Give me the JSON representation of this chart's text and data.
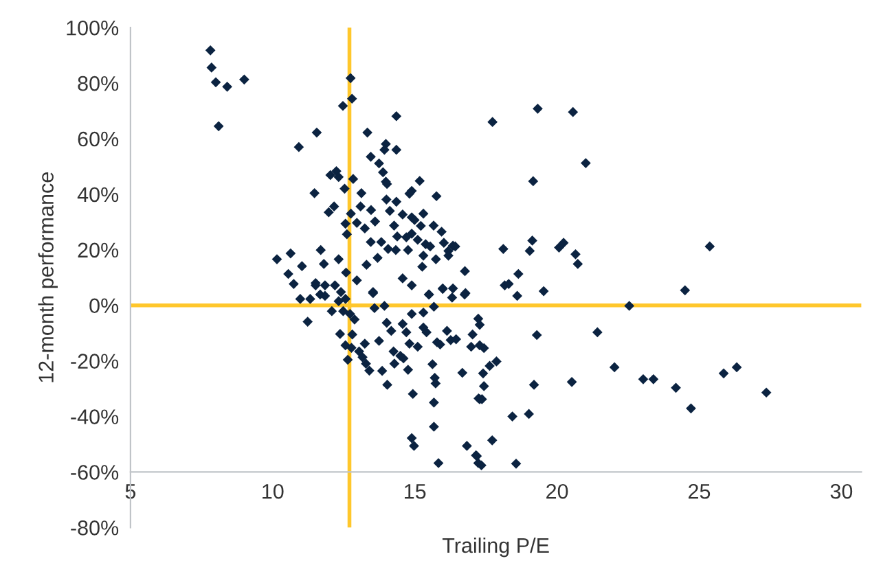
{
  "chart_data": {
    "type": "scatter",
    "xlabel": "Trailing P/E",
    "ylabel": "12-month performance",
    "marker": "diamond",
    "grid": false,
    "legend": false,
    "xlim": [
      5,
      30.7
    ],
    "xticks": [
      5,
      10,
      15,
      20,
      25,
      30
    ],
    "ylim": [
      -80,
      100
    ],
    "yticks": [
      {
        "value": -80,
        "label": "-80%"
      },
      {
        "value": -60,
        "label": "-60%"
      },
      {
        "value": -40,
        "label": "-40%"
      },
      {
        "value": -20,
        "label": "-20%"
      },
      {
        "value": 0,
        "label": "0%"
      },
      {
        "value": 20,
        "label": "20%"
      },
      {
        "value": 40,
        "label": "40%"
      },
      {
        "value": 60,
        "label": "60%"
      },
      {
        "value": 80,
        "label": "80%"
      },
      {
        "value": 100,
        "label": "100%"
      }
    ],
    "ref_lines": [
      {
        "axis": "x",
        "value": 12.7,
        "label": null,
        "color": "#ffc72c"
      },
      {
        "axis": "y",
        "value": 0,
        "label": null,
        "color": "#ffc72c"
      }
    ],
    "series": [
      {
        "color": "#0b2341",
        "x": [
          7.81,
          7.85,
          8.0,
          8.4,
          9.0,
          8.1,
          12.74,
          12.79,
          12.47,
          11.55,
          10.92,
          13.33,
          14.35,
          13.98,
          13.93,
          14.35,
          13.45,
          13.74,
          13.88,
          13.98,
          14.02,
          15.17,
          14.89,
          14.81,
          15.76,
          14.0,
          14.35,
          14.12,
          14.57,
          14.89,
          15.3,
          14.99,
          15.21,
          15.66,
          15.94,
          14.27,
          14.38,
          14.7,
          14.89,
          15.1,
          15.38,
          15.54,
          16.02,
          16.18,
          16.34,
          15.74,
          16.18,
          15.3,
          14.76,
          14.33,
          14.06,
          13.82,
          13.69,
          13.45,
          13.6,
          13.46,
          13.09,
          13.12,
          12.83,
          12.53,
          12.03,
          12.24,
          12.32,
          11.47,
          12.16,
          11.97,
          12.75,
          12.56,
          12.61,
          12.96,
          13.24,
          11.69,
          11.8,
          12.32,
          10.63,
          10.15,
          10.55,
          11.03,
          10.74,
          12.58,
          12.96,
          13.3,
          13.53,
          14.57,
          14.89,
          15.26,
          15.5,
          15.98,
          16.34,
          16.31,
          16.76,
          16.78,
          10.97,
          11.32,
          11.51,
          11.84,
          12.19,
          11.67,
          12.4,
          12.56,
          11.23,
          11.51,
          11.84,
          12.08,
          12.32,
          12.48,
          12.72,
          12.88,
          12.37,
          12.56,
          12.64,
          12.77,
          13.04,
          13.16,
          13.24,
          12.8,
          13.28,
          13.4,
          13.53,
          13.58,
          13.93,
          13.74,
          13.85,
          14.03,
          14.01,
          14.17,
          14.25,
          14.28,
          14.49,
          14.57,
          14.7,
          14.6,
          14.76,
          14.81,
          14.89,
          14.93,
          14.89,
          14.97,
          15.1,
          15.3,
          15.3,
          15.41,
          15.49,
          15.67,
          15.62,
          15.7,
          15.73,
          15.67,
          15.67,
          15.83,
          15.78,
          15.89,
          16.13,
          16.26,
          16.45,
          15.98,
          16.75,
          16.67,
          16.83,
          17.15,
          17.23,
          17.24,
          17.03,
          16.98,
          17.23,
          17.28,
          17.28,
          17.43,
          17.4,
          17.43,
          17.28,
          17.36,
          17.63,
          17.87,
          17.18,
          17.34,
          17.72,
          18.56,
          18.43,
          19.01,
          19.19,
          19.29,
          18.6,
          19.53,
          18.16,
          18.3,
          20.52,
          21.42,
          22.02,
          22.54,
          23.03,
          23.39,
          24.18,
          24.71,
          24.5,
          25.86,
          26.32,
          27.36,
          17.73,
          19.32,
          20.56,
          21.01,
          19.16,
          16.42,
          18.11,
          19.13,
          19.04,
          20.07,
          20.23,
          20.65,
          20.73,
          18.64,
          25.37
        ],
        "values": [
          91.8,
          85.6,
          80.3,
          78.7,
          81.3,
          64.5,
          81.8,
          74.4,
          71.8,
          62.2,
          57.0,
          62.2,
          68.1,
          58.1,
          56.0,
          56.0,
          53.5,
          51.1,
          47.9,
          44.5,
          43.7,
          44.8,
          41.2,
          40.2,
          39.3,
          38.1,
          37.3,
          34.0,
          32.7,
          31.7,
          33.0,
          30.7,
          28.6,
          28.7,
          26.5,
          28.7,
          24.8,
          24.5,
          25.8,
          23.6,
          22.0,
          21.2,
          22.5,
          19.6,
          21.5,
          16.6,
          17.9,
          17.9,
          19.9,
          19.9,
          20.3,
          22.8,
          17.1,
          22.8,
          30.2,
          34.3,
          35.6,
          40.4,
          45.5,
          42.0,
          46.9,
          48.3,
          46.2,
          40.4,
          35.6,
          33.5,
          33.0,
          29.4,
          25.6,
          29.7,
          27.7,
          19.9,
          14.9,
          16.6,
          18.7,
          16.6,
          11.3,
          14.1,
          7.7,
          11.8,
          9.0,
          14.6,
          4.8,
          9.7,
          7.2,
          13.9,
          3.9,
          6.1,
          6.1,
          2.8,
          12.3,
          4.4,
          2.3,
          2.3,
          7.2,
          7.2,
          7.2,
          3.9,
          4.8,
          2.3,
          -5.9,
          8.0,
          3.4,
          -2.1,
          1.5,
          -2.1,
          -3.1,
          -5.1,
          -10.3,
          -14.4,
          -19.6,
          -15.3,
          -16.6,
          -18.7,
          -13.8,
          -10.5,
          -21.0,
          -23.5,
          4.4,
          -1.0,
          -0.2,
          -12.8,
          -23.6,
          -28.6,
          -6.3,
          -9.2,
          -16.6,
          -21.0,
          -18.2,
          -6.7,
          -9.7,
          -19.1,
          -23.2,
          -13.8,
          -3.1,
          -31.9,
          -47.8,
          -50.6,
          -14.9,
          -2.6,
          -8.0,
          -9.7,
          3.9,
          -0.5,
          -21.2,
          -26.1,
          -28.1,
          -35.0,
          -43.7,
          -56.8,
          -13.3,
          -14.1,
          -9.2,
          -12.5,
          -12.2,
          5.9,
          3.9,
          -24.3,
          -50.6,
          -54.0,
          -56.8,
          -33.5,
          -10.5,
          -14.9,
          -4.8,
          -7.0,
          -14.4,
          -15.4,
          -24.5,
          -29.1,
          -33.8,
          -33.8,
          -21.8,
          -20.2,
          -54.3,
          -57.6,
          -48.6,
          -57.0,
          -40.0,
          -39.1,
          -28.6,
          -10.7,
          3.4,
          5.1,
          7.2,
          7.7,
          -27.6,
          -9.7,
          -22.3,
          -0.2,
          -26.6,
          -26.6,
          -29.7,
          -37.1,
          5.4,
          -24.5,
          -22.3,
          -31.4,
          66.0,
          70.8,
          69.6,
          51.2,
          44.7,
          21.2,
          20.3,
          23.3,
          19.6,
          20.8,
          22.5,
          18.4,
          14.9,
          11.3,
          21.2
        ]
      }
    ]
  }
}
